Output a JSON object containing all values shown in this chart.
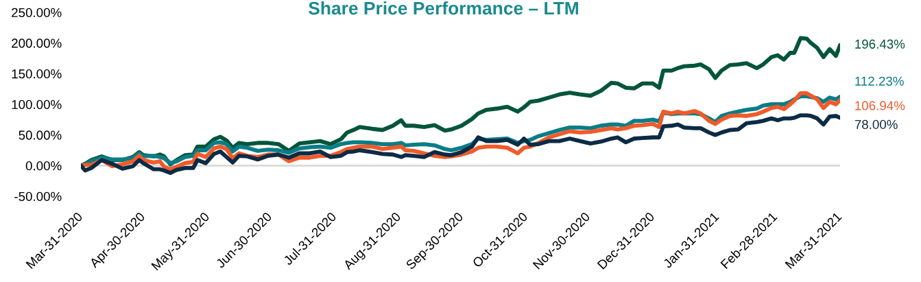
{
  "chart_data": {
    "type": "line",
    "title": "Share Price Performance – LTM",
    "x": [
      "2020-03-31",
      "2020-04-02",
      "2020-04-05",
      "2020-04-10",
      "2020-04-15",
      "2020-04-20",
      "2020-04-25",
      "2020-04-28",
      "2020-04-30",
      "2020-05-05",
      "2020-05-08",
      "2020-05-10",
      "2020-05-13",
      "2020-05-16",
      "2020-05-20",
      "2020-05-24",
      "2020-05-26",
      "2020-05-30",
      "2020-06-03",
      "2020-06-06",
      "2020-06-09",
      "2020-06-12",
      "2020-06-15",
      "2020-06-19",
      "2020-06-24",
      "2020-06-29",
      "2020-07-04",
      "2020-07-09",
      "2020-07-14",
      "2020-07-19",
      "2020-07-24",
      "2020-07-29",
      "2020-08-03",
      "2020-08-06",
      "2020-08-09",
      "2020-08-12",
      "2020-08-18",
      "2020-08-23",
      "2020-08-28",
      "2020-09-01",
      "2020-09-03",
      "2020-09-07",
      "2020-09-12",
      "2020-09-17",
      "2020-09-22",
      "2020-09-25",
      "2020-09-30",
      "2020-10-05",
      "2020-10-08",
      "2020-10-12",
      "2020-10-17",
      "2020-10-22",
      "2020-10-27",
      "2020-10-30",
      "2020-11-02",
      "2020-11-06",
      "2020-11-11",
      "2020-11-16",
      "2020-11-21",
      "2020-11-26",
      "2020-12-01",
      "2020-12-06",
      "2020-12-11",
      "2020-12-14",
      "2020-12-18",
      "2020-12-22",
      "2020-12-26",
      "2020-12-31",
      "2021-01-03",
      "2021-01-05",
      "2021-01-09",
      "2021-01-12",
      "2021-01-15",
      "2021-01-20",
      "2021-01-23",
      "2021-01-27",
      "2021-01-30",
      "2021-02-02",
      "2021-02-06",
      "2021-02-10",
      "2021-02-14",
      "2021-02-19",
      "2021-02-22",
      "2021-02-26",
      "2021-03-01",
      "2021-03-04",
      "2021-03-07",
      "2021-03-09",
      "2021-03-12",
      "2021-03-15",
      "2021-03-17",
      "2021-03-20",
      "2021-03-23",
      "2021-03-26",
      "2021-03-29",
      "2021-03-31"
    ],
    "series": [
      {
        "color": "#03553b",
        "values": [
          0,
          3,
          9,
          15,
          9,
          9,
          14,
          22,
          17,
          15,
          18,
          15,
          2,
          9,
          17,
          18,
          31,
          31,
          43,
          47,
          41,
          29,
          37,
          35,
          37,
          37,
          35,
          24,
          36,
          38,
          40,
          35,
          43,
          54,
          58,
          63,
          60,
          58,
          65,
          74,
          65,
          65,
          63,
          66,
          57,
          59,
          65,
          76,
          85,
          91,
          93,
          96,
          88,
          95,
          104,
          106,
          111,
          116,
          119,
          116,
          114,
          122,
          135,
          134,
          127,
          126,
          134,
          134,
          127,
          155,
          155,
          159,
          162,
          163,
          165,
          157,
          143,
          155,
          164,
          165,
          167,
          159,
          165,
          177,
          180,
          173,
          184,
          184,
          208,
          207,
          200,
          192,
          177,
          190,
          179,
          196.43
        ],
        "value_labels": [
          null,
          null,
          null,
          null,
          null,
          null,
          null,
          null,
          null,
          null,
          null,
          null,
          null,
          null,
          null,
          null,
          null,
          null,
          null,
          null,
          null,
          null,
          null,
          null,
          null,
          null,
          null,
          null,
          null,
          null,
          null,
          null,
          null,
          null,
          null,
          null,
          null,
          null,
          null,
          null,
          null,
          null,
          null,
          null,
          null,
          null,
          null,
          null,
          null,
          null,
          null,
          null,
          null,
          null,
          null,
          null,
          null,
          null,
          null,
          null,
          null,
          null,
          null,
          null,
          null,
          null,
          null,
          null,
          null,
          null,
          null,
          null,
          null,
          null,
          null,
          null,
          null,
          null,
          null,
          null,
          null,
          null,
          null,
          null,
          null,
          null,
          null,
          null,
          null,
          null,
          null,
          null,
          null,
          null,
          null,
          "196.43%"
        ]
      },
      {
        "color": "#0b7d87",
        "values": [
          0,
          2,
          7,
          13,
          10,
          10,
          12,
          20,
          15,
          16,
          14,
          12,
          4,
          7,
          14,
          16,
          25,
          25,
          37,
          38,
          35,
          23,
          31,
          29,
          24,
          26,
          25,
          21,
          28,
          30,
          31,
          29,
          35,
          37,
          38,
          38,
          37,
          35,
          35,
          37,
          33,
          34,
          35,
          33,
          27,
          25,
          29,
          35,
          44,
          42,
          43,
          44,
          37,
          40,
          42,
          48,
          53,
          58,
          62,
          62,
          61,
          65,
          67,
          67,
          65,
          73,
          73,
          75,
          72,
          87,
          84,
          85,
          85,
          85,
          84,
          77,
          71,
          81,
          85,
          88,
          91,
          93,
          98,
          100,
          100,
          100,
          104,
          108,
          113,
          113,
          112,
          110,
          104,
          111,
          108,
          112.23
        ],
        "value_labels": [
          null,
          null,
          null,
          null,
          null,
          null,
          null,
          null,
          null,
          null,
          null,
          null,
          null,
          null,
          null,
          null,
          null,
          null,
          null,
          null,
          null,
          null,
          null,
          null,
          null,
          null,
          null,
          null,
          null,
          null,
          null,
          null,
          null,
          null,
          null,
          null,
          null,
          null,
          null,
          null,
          null,
          null,
          null,
          null,
          null,
          null,
          null,
          null,
          null,
          null,
          null,
          null,
          null,
          null,
          null,
          null,
          null,
          null,
          null,
          null,
          null,
          null,
          null,
          null,
          null,
          null,
          null,
          null,
          null,
          null,
          null,
          null,
          null,
          null,
          null,
          null,
          null,
          null,
          null,
          null,
          null,
          null,
          null,
          null,
          null,
          null,
          null,
          null,
          null,
          null,
          null,
          null,
          null,
          null,
          null,
          "112.23%"
        ]
      },
      {
        "color": "#f15a29",
        "values": [
          0,
          1,
          1,
          9,
          -1,
          2,
          7,
          16,
          9,
          5,
          7,
          -2,
          -6,
          -2,
          4,
          6,
          19,
          14,
          28,
          31,
          27,
          12,
          20,
          16,
          14,
          18,
          18,
          7,
          13,
          13,
          16,
          16,
          22,
          27,
          29,
          31,
          31,
          27,
          29,
          31,
          25,
          24,
          20,
          16,
          14,
          15,
          18,
          23,
          29,
          31,
          31,
          29,
          20,
          29,
          31,
          37,
          46,
          51,
          56,
          54,
          55,
          58,
          61,
          59,
          61,
          65,
          66,
          68,
          63,
          88,
          85,
          88,
          85,
          89,
          85,
          73,
          68,
          75,
          81,
          82,
          81,
          84,
          88,
          94,
          96,
          92,
          100,
          106,
          118,
          118,
          114,
          108,
          94,
          104,
          100,
          106.94
        ],
        "value_labels": [
          null,
          null,
          null,
          null,
          null,
          null,
          null,
          null,
          null,
          null,
          null,
          null,
          null,
          null,
          null,
          null,
          null,
          null,
          null,
          null,
          null,
          null,
          null,
          null,
          null,
          null,
          null,
          null,
          null,
          null,
          null,
          null,
          null,
          null,
          null,
          null,
          null,
          null,
          null,
          null,
          null,
          null,
          null,
          null,
          null,
          null,
          null,
          null,
          null,
          null,
          null,
          null,
          null,
          null,
          null,
          null,
          null,
          null,
          null,
          null,
          null,
          null,
          null,
          null,
          null,
          null,
          null,
          null,
          null,
          null,
          null,
          null,
          null,
          null,
          null,
          null,
          null,
          null,
          null,
          null,
          null,
          null,
          null,
          null,
          null,
          null,
          null,
          null,
          null,
          null,
          null,
          null,
          null,
          null,
          null,
          "106.94%"
        ]
      },
      {
        "color": "#0c2b45",
        "values": [
          0,
          -8,
          -4,
          9,
          3,
          -5,
          -1,
          9,
          4,
          -6,
          -6,
          -8,
          -12,
          -7,
          -4,
          -4,
          9,
          4,
          19,
          23,
          14,
          5,
          16,
          15,
          10,
          16,
          18,
          13,
          20,
          20,
          23,
          14,
          16,
          22,
          23,
          25,
          22,
          19,
          18,
          14,
          17,
          16,
          14,
          22,
          18,
          17,
          22,
          31,
          46,
          40,
          40,
          42,
          34,
          44,
          34,
          35,
          40,
          40,
          44,
          40,
          36,
          39,
          44,
          46,
          38,
          44,
          45,
          46,
          46,
          64,
          65,
          67,
          62,
          61,
          61,
          54,
          50,
          54,
          58,
          59,
          69,
          71,
          73,
          77,
          74,
          77,
          77,
          78,
          82,
          82,
          81,
          77,
          67,
          80,
          81,
          78.0
        ],
        "value_labels": [
          null,
          null,
          null,
          null,
          null,
          null,
          null,
          null,
          null,
          null,
          null,
          null,
          null,
          null,
          null,
          null,
          null,
          null,
          null,
          null,
          null,
          null,
          null,
          null,
          null,
          null,
          null,
          null,
          null,
          null,
          null,
          null,
          null,
          null,
          null,
          null,
          null,
          null,
          null,
          null,
          null,
          null,
          null,
          null,
          null,
          null,
          null,
          null,
          null,
          null,
          null,
          null,
          null,
          null,
          null,
          null,
          null,
          null,
          null,
          null,
          null,
          null,
          null,
          null,
          null,
          null,
          null,
          null,
          null,
          null,
          null,
          null,
          null,
          null,
          null,
          null,
          null,
          null,
          null,
          null,
          null,
          null,
          null,
          null,
          null,
          null,
          null,
          null,
          null,
          null,
          null,
          null,
          null,
          null,
          null,
          "78.00%"
        ]
      }
    ],
    "xlim": [
      "2020-03-31",
      "2021-03-31"
    ],
    "xticks": [
      {
        "value": "2020-03-31",
        "label": "Mar-31-2020"
      },
      {
        "value": "2020-04-30",
        "label": "Apr-30-2020"
      },
      {
        "value": "2020-05-31",
        "label": "May-31-2020"
      },
      {
        "value": "2020-06-30",
        "label": "Jun-30-2020"
      },
      {
        "value": "2020-07-31",
        "label": "Jul-31-2020"
      },
      {
        "value": "2020-08-31",
        "label": "Aug-31-2020"
      },
      {
        "value": "2020-09-30",
        "label": "Sep-30-2020"
      },
      {
        "value": "2020-10-31",
        "label": "Oct-31-2020"
      },
      {
        "value": "2020-11-30",
        "label": "Nov-30-2020"
      },
      {
        "value": "2020-12-31",
        "label": "Dec-31-2020"
      },
      {
        "value": "2021-01-31",
        "label": "Jan-31-2021"
      },
      {
        "value": "2021-02-28",
        "label": "Feb-28-2021"
      },
      {
        "value": "2021-03-31",
        "label": "Mar-31-2021"
      }
    ],
    "ylim": [
      -50,
      250
    ],
    "yticks": [
      {
        "value": -50,
        "label": "-50.00%"
      },
      {
        "value": 0,
        "label": "0.00%"
      },
      {
        "value": 50,
        "label": "50.00%"
      },
      {
        "value": 100,
        "label": "100.00%"
      },
      {
        "value": 150,
        "label": "150.00%"
      },
      {
        "value": 200,
        "label": "200.00%"
      },
      {
        "value": 250,
        "label": "250.00%"
      }
    ],
    "ref_lines": [
      {
        "axis": "y",
        "value": 0,
        "color": "#d9d9d9"
      }
    ],
    "line_style": "solid"
  }
}
